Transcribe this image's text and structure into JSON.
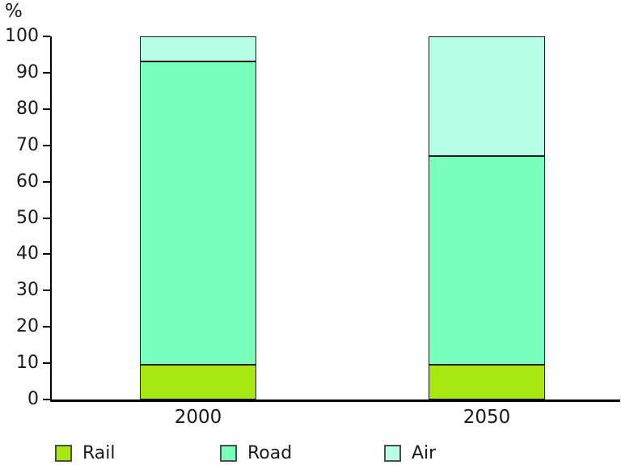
{
  "chart_data": {
    "type": "bar",
    "stacked": true,
    "title": "",
    "unit_label": "%",
    "xlabel": "",
    "ylabel": "%",
    "categories": [
      "2000",
      "2050"
    ],
    "series": [
      {
        "name": "Rail",
        "color": "#a8e614",
        "values": [
          9.5,
          9.5
        ]
      },
      {
        "name": "Road",
        "color": "#7affbc",
        "values": [
          83.5,
          57.5
        ]
      },
      {
        "name": "Air",
        "color": "#b6ffe6",
        "values": [
          7,
          33
        ]
      }
    ],
    "ylim": [
      0,
      100
    ],
    "yticks": [
      0,
      10,
      20,
      30,
      40,
      50,
      60,
      70,
      80,
      90,
      100
    ],
    "grid": false,
    "legend_position": "bottom",
    "colors": {
      "axis": "#000000",
      "segment_border": "#1a1a1a",
      "swatch_border": "#4d4d4d",
      "text": "#1a1a1a",
      "background": "#ffffff"
    }
  }
}
